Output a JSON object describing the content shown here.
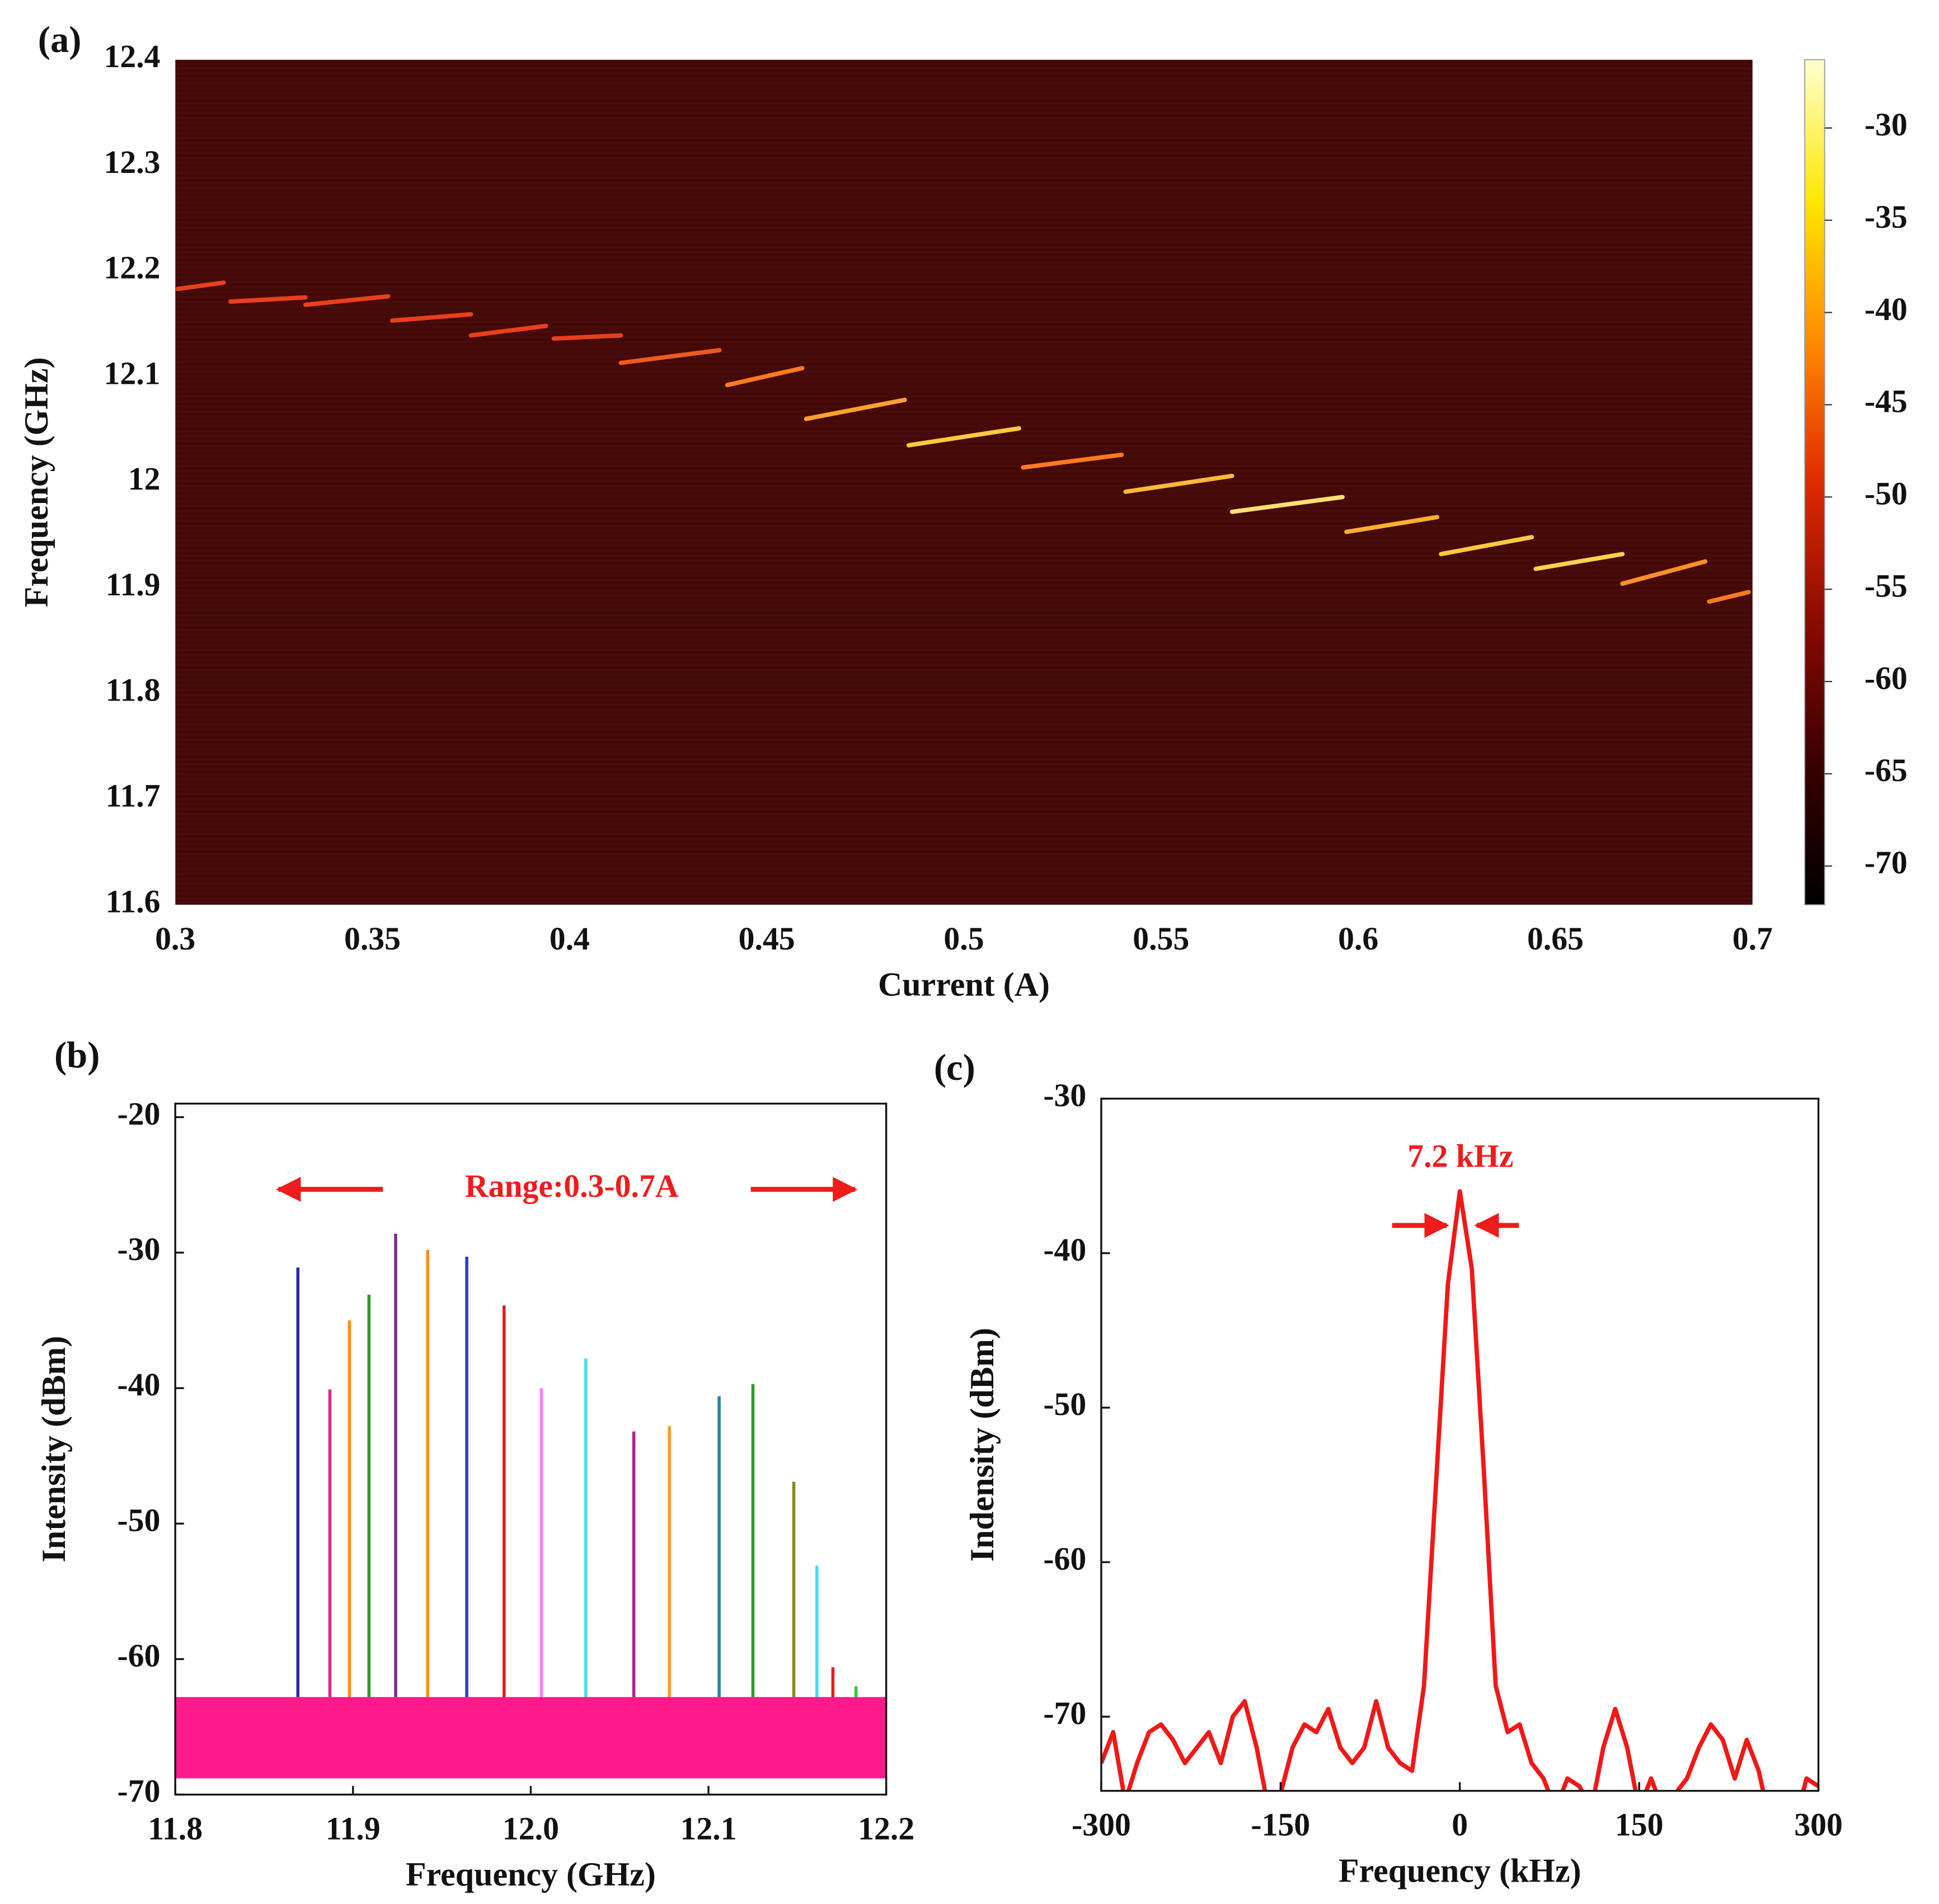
{
  "chart_data": [
    {
      "type": "heatmap",
      "panel_label": "(a)",
      "x_label": "Current (A)",
      "y_label": "Frequency (GHz)",
      "xlim": [
        0.3,
        0.7
      ],
      "xticks": [
        0.3,
        0.35,
        0.4,
        0.45,
        0.5,
        0.55,
        0.6,
        0.65,
        0.7
      ],
      "ylim": [
        11.6,
        12.4
      ],
      "yticks": [
        11.6,
        11.7,
        11.8,
        11.9,
        12,
        12.1,
        12.2,
        12.3,
        12.4
      ],
      "background_color": "#4a0b09",
      "colorbar": {
        "zlim": [
          -72.1,
          -26.3
        ],
        "ticks": [
          -30,
          -35,
          -40,
          -45,
          -50,
          -55,
          -60,
          -65,
          -70
        ],
        "colors": [
          "#000000",
          "#3a0000",
          "#8a0a00",
          "#e02a00",
          "#ff8a00",
          "#ffe600",
          "#ffffd0"
        ]
      },
      "series": [
        {
          "x": [
            0.3006,
            0.3123
          ],
          "values": [
            12.183,
            12.189
          ],
          "color": "#e8401c"
        },
        {
          "x": [
            0.314,
            0.333
          ],
          "values": [
            12.171,
            12.175
          ],
          "color": "#e8401c"
        },
        {
          "x": [
            0.333,
            0.354
          ],
          "values": [
            12.168,
            12.176
          ],
          "color": "#e8401c"
        },
        {
          "x": [
            0.355,
            0.375
          ],
          "values": [
            12.153,
            12.159
          ],
          "color": "#e8401c"
        },
        {
          "x": [
            0.375,
            0.394
          ],
          "values": [
            12.139,
            12.148
          ],
          "color": "#e8401c"
        },
        {
          "x": [
            0.396,
            0.413
          ],
          "values": [
            12.136,
            12.139
          ],
          "color": "#e8401c"
        },
        {
          "x": [
            0.413,
            0.438
          ],
          "values": [
            12.113,
            12.125
          ],
          "color": "#ee5a1e"
        },
        {
          "x": [
            0.44,
            0.459
          ],
          "values": [
            12.092,
            12.108
          ],
          "color": "#ff7a20"
        },
        {
          "x": [
            0.46,
            0.485
          ],
          "values": [
            12.06,
            12.078
          ],
          "color": "#ffa030"
        },
        {
          "x": [
            0.486,
            0.514
          ],
          "values": [
            12.035,
            12.051
          ],
          "color": "#ffc840"
        },
        {
          "x": [
            0.515,
            0.54
          ],
          "values": [
            12.014,
            12.026
          ],
          "color": "#ff7a20"
        },
        {
          "x": [
            0.541,
            0.568
          ],
          "values": [
            11.991,
            12.006
          ],
          "color": "#ffb838"
        },
        {
          "x": [
            0.568,
            0.596
          ],
          "values": [
            11.972,
            11.986
          ],
          "color": "#ffe070"
        },
        {
          "x": [
            0.597,
            0.62
          ],
          "values": [
            11.953,
            11.967
          ],
          "color": "#ffb030"
        },
        {
          "x": [
            0.621,
            0.644
          ],
          "values": [
            11.932,
            11.948
          ],
          "color": "#ffc840"
        },
        {
          "x": [
            0.645,
            0.667
          ],
          "values": [
            11.918,
            11.932
          ],
          "color": "#ffd050"
        },
        {
          "x": [
            0.667,
            0.688
          ],
          "values": [
            11.904,
            11.925
          ],
          "color": "#ff9028"
        },
        {
          "x": [
            0.689,
            0.699
          ],
          "values": [
            11.887,
            11.896
          ],
          "color": "#ff7a20"
        }
      ]
    },
    {
      "type": "spectrum",
      "panel_label": "(b)",
      "x_label": "Frequency (GHz)",
      "y_label": "Intensity (dBm)",
      "annotation": "Range:0.3-0.7A",
      "annotation_color": "#ee1c1c",
      "xlim": [
        11.8,
        12.2
      ],
      "xticks": [
        11.8,
        11.9,
        {
          "value": 12,
          "label": "12.0"
        },
        12.1,
        12.2
      ],
      "ylim": [
        -70,
        -19
      ],
      "yticks": [
        -20,
        -30,
        -40,
        -50,
        -60,
        -70
      ],
      "noise_band": [
        -68.8,
        -62.8
      ],
      "noise_color": "#ff1a8c",
      "x": [
        11.869,
        11.887,
        11.898,
        11.909,
        11.924,
        11.942,
        11.964,
        11.985,
        12.006,
        12.031,
        12.058,
        12.078,
        12.106,
        12.125,
        12.148,
        12.161,
        12.17,
        12.183
      ],
      "values": [
        -31.1,
        -40.1,
        -35.0,
        -33.1,
        -28.6,
        -29.8,
        -30.3,
        -33.9,
        -40.0,
        -37.8,
        -43.2,
        -42.8,
        -40.6,
        -39.7,
        -46.9,
        -53.1,
        -60.6,
        -62.0
      ],
      "colors": [
        "#2b2b9c",
        "#e0288a",
        "#ff8c1a",
        "#2e9a2e",
        "#7b2d8e",
        "#ff8c1a",
        "#2b3fc0",
        "#e02020",
        "#ff80ff",
        "#40e0f0",
        "#b0208f",
        "#ff9a30",
        "#2a7fa0",
        "#2e9a2e",
        "#8a8a20",
        "#40e0f0",
        "#e02020",
        "#2ecc2e"
      ]
    },
    {
      "type": "line",
      "panel_label": "(c)",
      "x_label": "Frequency (kHz)",
      "y_label": "Indensity (dBm)",
      "annotation": "7.2 kHz",
      "annotation_color": "#ee1c1c",
      "color": "#f01818",
      "xlim": [
        -300,
        300
      ],
      "xticks": [
        -300,
        -150,
        0,
        150,
        300
      ],
      "ylim": [
        -74.8,
        -30
      ],
      "yticks": [
        -30,
        -40,
        -50,
        -60,
        -70
      ],
      "x": [
        -300,
        -290,
        -280,
        -270,
        -260,
        -250,
        -240,
        -230,
        -220,
        -210,
        -200,
        -190,
        -180,
        -170,
        -160,
        -150,
        -140,
        -130,
        -120,
        -110,
        -100,
        -90,
        -80,
        -70,
        -60,
        -50,
        -40,
        -30,
        -20,
        -10,
        0,
        10,
        20,
        30,
        40,
        50,
        60,
        70,
        80,
        90,
        100,
        110,
        120,
        130,
        140,
        150,
        160,
        170,
        180,
        190,
        200,
        210,
        220,
        230,
        240,
        250,
        260,
        270,
        280,
        290,
        300
      ],
      "values": [
        -73,
        -71,
        -75.5,
        -73,
        -71,
        -70.5,
        -71.5,
        -73,
        -72,
        -71,
        -73,
        -70,
        -69,
        -72,
        -76,
        -75,
        -72,
        -70.5,
        -71,
        -69.5,
        -72,
        -73,
        -72,
        -69,
        -72,
        -73,
        -73.5,
        -68,
        -55,
        -42,
        -36,
        -41,
        -54,
        -68,
        -71,
        -70.5,
        -73,
        -74,
        -76,
        -74,
        -74.5,
        -76,
        -72,
        -69.5,
        -72,
        -76,
        -74,
        -76,
        -75,
        -74,
        -72,
        -70.5,
        -71.5,
        -74,
        -71.5,
        -73.5,
        -77,
        -77,
        -77,
        -74,
        -74.5
      ]
    }
  ]
}
